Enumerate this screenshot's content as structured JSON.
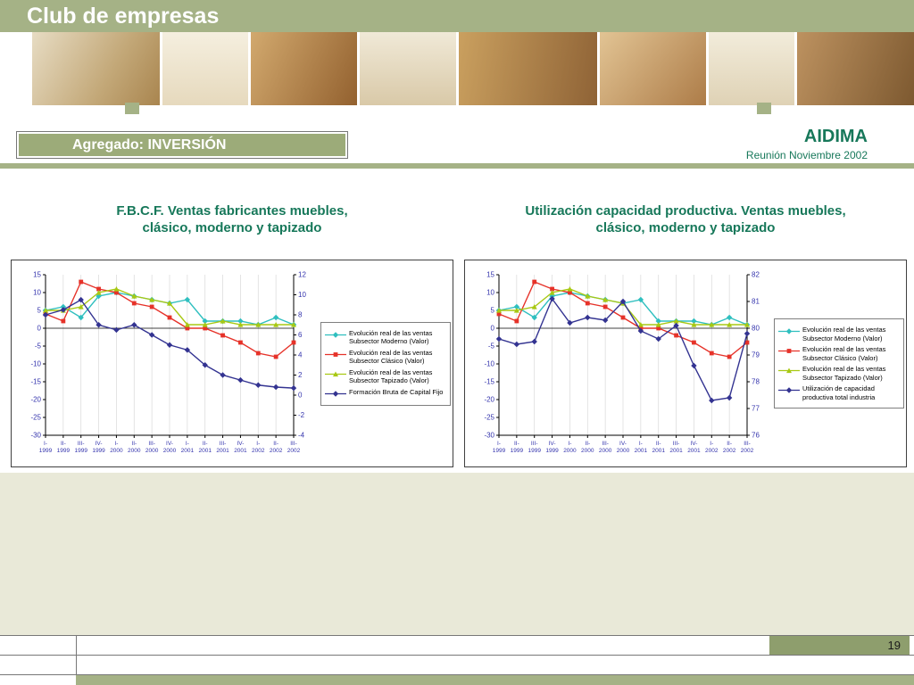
{
  "slide": {
    "header_title": "Club de empresas",
    "tag_label": "Agregado: INVERSIÓN",
    "org": "AIDIMA",
    "meeting": "Reunión Noviembre 2002",
    "page_number": "19"
  },
  "colors": {
    "sage": "#a5b286",
    "sage_dark": "#8e9e6d",
    "tag_bg": "#9cab79",
    "title_green": "#17785a",
    "axis_text": "#3434ad",
    "beige": "#e9e9d8"
  },
  "chart_data": [
    {
      "type": "line",
      "title_lines": [
        "F.B.C.F. Ventas fabricantes muebles,",
        "clásico, moderno y tapizado"
      ],
      "grid": true,
      "legend_position": "right",
      "x_quarters": [
        "I-",
        "II-",
        "III-",
        "IV-",
        "I-",
        "II-",
        "III-",
        "IV-",
        "I-",
        "II-",
        "III-",
        "IV-",
        "I-",
        "II-",
        "III-"
      ],
      "x_years": [
        "1999",
        "1999",
        "1999",
        "1999",
        "2000",
        "2000",
        "2000",
        "2000",
        "2001",
        "2001",
        "2001",
        "2001",
        "2002",
        "2002",
        "2002"
      ],
      "left_axis": {
        "min": -30,
        "max": 15,
        "step": 5
      },
      "right_axis": {
        "min": -4,
        "max": 12,
        "step": 2
      },
      "series": [
        {
          "name": "Evolución real de las ventas Subsector Moderno (Valor)",
          "legend_lines": [
            "Evolución real de las ventas",
            "Subsector Moderno (Valor)"
          ],
          "color": "#2fbfbf",
          "marker": "diamond",
          "axis": "left",
          "values": [
            5,
            6,
            3,
            9,
            10,
            9,
            8,
            7,
            8,
            2,
            2,
            2,
            1,
            3,
            1
          ]
        },
        {
          "name": "Evolución real de las ventas Subsector Clásico (Valor)",
          "legend_lines": [
            "Evolución real de las ventas",
            "Subsector Clásico (Valor)"
          ],
          "color": "#e63229",
          "marker": "square",
          "axis": "left",
          "values": [
            4,
            2,
            13,
            11,
            10,
            7,
            6,
            3,
            0,
            0,
            -2,
            -4,
            -7,
            -8,
            -4
          ]
        },
        {
          "name": "Evolución real de las ventas Subsector Tapizado (Valor)",
          "legend_lines": [
            "Evolución real de las ventas",
            "Subsector Tapizado (Valor)"
          ],
          "color": "#a8c813",
          "marker": "triangle",
          "axis": "left",
          "values": [
            5,
            5,
            6,
            10,
            11,
            9,
            8,
            7,
            1,
            1,
            2,
            1,
            1,
            1,
            1
          ]
        },
        {
          "name": "Formación Bruta de Capital Fijo",
          "legend_lines": [
            "Formación Bruta de Capital Fijo"
          ],
          "color": "#333391",
          "marker": "diamond",
          "axis": "right",
          "values": [
            8,
            8.5,
            9.5,
            7,
            6.5,
            7,
            6,
            5,
            4.5,
            3,
            2,
            1.5,
            1,
            0.8,
            0.7
          ]
        }
      ]
    },
    {
      "type": "line",
      "title_lines": [
        "Utilización capacidad productiva. Ventas muebles,",
        "clásico, moderno y tapizado"
      ],
      "grid": true,
      "legend_position": "right",
      "x_quarters": [
        "I-",
        "II-",
        "III-",
        "IV-",
        "I-",
        "II-",
        "III-",
        "IV-",
        "I-",
        "II-",
        "III-",
        "IV-",
        "I-",
        "II-",
        "III-"
      ],
      "x_years": [
        "1999",
        "1999",
        "1999",
        "1999",
        "2000",
        "2000",
        "2000",
        "2000",
        "2001",
        "2001",
        "2001",
        "2001",
        "2002",
        "2002",
        "2002"
      ],
      "left_axis": {
        "min": -30,
        "max": 15,
        "step": 5
      },
      "right_axis": {
        "min": 76,
        "max": 82,
        "step": 1
      },
      "series": [
        {
          "name": "Evolución real de las ventas Subsector Moderno (Valor)",
          "legend_lines": [
            "Evolución real de las ventas",
            "Subsector Moderno (Valor)"
          ],
          "color": "#2fbfbf",
          "marker": "diamond",
          "axis": "left",
          "values": [
            5,
            6,
            3,
            9,
            10,
            9,
            8,
            7,
            8,
            2,
            2,
            2,
            1,
            3,
            1
          ]
        },
        {
          "name": "Evolución real de las ventas Subsector Clásico (Valor)",
          "legend_lines": [
            "Evolución real de las ventas",
            "Subsector Clásico (Valor)"
          ],
          "color": "#e63229",
          "marker": "square",
          "axis": "left",
          "values": [
            4,
            2,
            13,
            11,
            10,
            7,
            6,
            3,
            0,
            0,
            -2,
            -4,
            -7,
            -8,
            -4
          ]
        },
        {
          "name": "Evolución real de las ventas Subsector Tapizado (Valor)",
          "legend_lines": [
            "Evolución real de las ventas",
            "Subsector Tapizado (Valor)"
          ],
          "color": "#a8c813",
          "marker": "triangle",
          "axis": "left",
          "values": [
            5,
            5,
            6,
            10,
            11,
            9,
            8,
            7,
            1,
            1,
            2,
            1,
            1,
            1,
            1
          ]
        },
        {
          "name": "Utilización de capacidad productiva total industria",
          "legend_lines": [
            "Utilización de capacidad",
            "productiva total industria"
          ],
          "color": "#333391",
          "marker": "diamond",
          "axis": "right",
          "values": [
            79.6,
            79.4,
            79.5,
            81.1,
            80.2,
            80.4,
            80.3,
            81,
            79.9,
            79.6,
            80.1,
            78.6,
            77.3,
            77.4,
            79.8
          ]
        }
      ]
    }
  ]
}
